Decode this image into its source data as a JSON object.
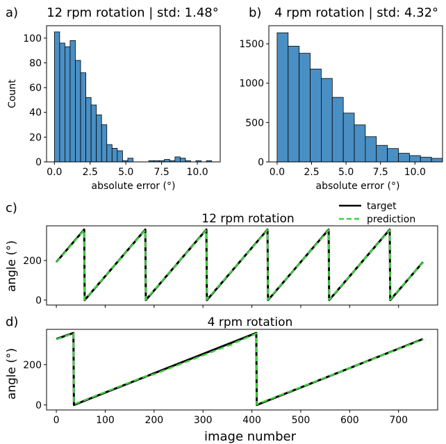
{
  "panels": {
    "a": {
      "letter": "a)",
      "title": "12 rpm rotation | std: 1.48°"
    },
    "b": {
      "letter": "b)",
      "title": "4 rpm rotation | std: 4.32°"
    },
    "c": {
      "letter": "c)",
      "title": "12 rpm rotation"
    },
    "d": {
      "letter": "d)",
      "title": "4 rpm rotation"
    }
  },
  "colors": {
    "bar": "#4a8fc4",
    "target": "#000000",
    "prediction": "#3fcf3f"
  },
  "chart_data": [
    {
      "type": "bar",
      "panel": "a",
      "title": "12 rpm rotation | std: 1.48°",
      "xlabel": "absolute error (°)",
      "ylabel": "Count",
      "xlim": [
        -0.55,
        11.6
      ],
      "ylim": [
        0,
        110
      ],
      "xticks": [
        0.0,
        2.5,
        5.0,
        7.5,
        10.0
      ],
      "xtick_labels": [
        "0.0",
        "2.5",
        "5.0",
        "7.5",
        "10.0"
      ],
      "yticks": [
        0,
        20,
        40,
        60,
        80,
        100
      ],
      "bin_edges": [
        0.0,
        0.367,
        0.733,
        1.1,
        1.467,
        1.833,
        2.2,
        2.567,
        2.933,
        3.3,
        3.667,
        4.033,
        4.4,
        4.767,
        5.133,
        5.5,
        5.867,
        6.233,
        6.6,
        6.967,
        7.333,
        7.7,
        8.067,
        8.433,
        8.8,
        9.167,
        9.533,
        9.9,
        10.267,
        10.633,
        11.0
      ],
      "values": [
        105,
        96,
        93,
        98,
        82,
        72,
        52,
        46,
        38,
        30,
        14,
        11,
        9,
        1,
        3,
        0,
        0,
        0,
        1,
        1,
        1,
        2,
        1,
        4,
        3,
        1,
        0,
        1,
        0,
        1
      ]
    },
    {
      "type": "bar",
      "panel": "b",
      "title": "4 rpm rotation | std: 4.32°",
      "xlabel": "absolute error (°)",
      "ylabel": "",
      "xlim": [
        -0.6,
        12.0
      ],
      "ylim": [
        0,
        1730
      ],
      "xticks": [
        0.0,
        2.5,
        5.0,
        7.5,
        10.0
      ],
      "xtick_labels": [
        "0.0",
        "2.5",
        "5.0",
        "7.5",
        "10.0"
      ],
      "yticks": [
        0,
        500,
        1000,
        1500
      ],
      "bin_edges": [
        0.0,
        0.8,
        1.6,
        2.4,
        3.2,
        4.0,
        4.8,
        5.6,
        6.4,
        7.2,
        8.0,
        8.8,
        9.6,
        10.4,
        11.2,
        12.0
      ],
      "values": [
        1640,
        1470,
        1380,
        1180,
        1060,
        820,
        620,
        470,
        320,
        210,
        170,
        110,
        80,
        60,
        45
      ]
    },
    {
      "type": "line",
      "panel": "c",
      "title": "12 rpm rotation",
      "xlabel": "",
      "ylabel": "angle (°)",
      "xlim": [
        -20,
        780
      ],
      "ylim": [
        -25,
        375
      ],
      "yticks": [
        0,
        200
      ],
      "xticks": [
        0,
        100,
        200,
        300,
        400,
        500,
        600,
        700
      ],
      "legend": {
        "position": "top-right",
        "entries": [
          "target",
          "prediction"
        ]
      },
      "series": [
        {
          "name": "target",
          "style": "solid",
          "x": [
            0,
            57,
            58,
            182,
            183,
            307,
            308,
            432,
            433,
            557,
            558,
            682,
            683,
            750
          ],
          "y": [
            192,
            356,
            0,
            356,
            0,
            356,
            0,
            356,
            0,
            356,
            0,
            356,
            0,
            192
          ]
        },
        {
          "name": "prediction",
          "style": "dashed",
          "x": [
            0,
            57,
            58,
            182,
            183,
            307,
            308,
            432,
            433,
            557,
            558,
            682,
            683,
            750
          ],
          "y": [
            190,
            354,
            2,
            354,
            2,
            354,
            3,
            354,
            2,
            354,
            2,
            354,
            3,
            190
          ]
        }
      ]
    },
    {
      "type": "line",
      "panel": "d",
      "title": "4 rpm rotation",
      "xlabel": "image number",
      "ylabel": "angle (°)",
      "xlim": [
        -20,
        780
      ],
      "ylim": [
        -25,
        375
      ],
      "yticks": [
        0,
        200
      ],
      "xticks": [
        0,
        100,
        200,
        300,
        400,
        500,
        600,
        700
      ],
      "xtick_labels": [
        "0",
        "100",
        "200",
        "300",
        "400",
        "500",
        "600",
        "700"
      ],
      "series": [
        {
          "name": "target",
          "style": "solid",
          "x": [
            0,
            35,
            36,
            409,
            410,
            750
          ],
          "y": [
            327,
            357,
            0,
            357,
            0,
            327
          ]
        },
        {
          "name": "prediction",
          "style": "dashed",
          "x": [
            0,
            35,
            36,
            180,
            200,
            350,
            360,
            365,
            409,
            410,
            750
          ],
          "y": [
            325,
            355,
            3,
            140,
            152,
            293,
            300,
            308,
            354,
            3,
            325
          ]
        }
      ]
    }
  ]
}
